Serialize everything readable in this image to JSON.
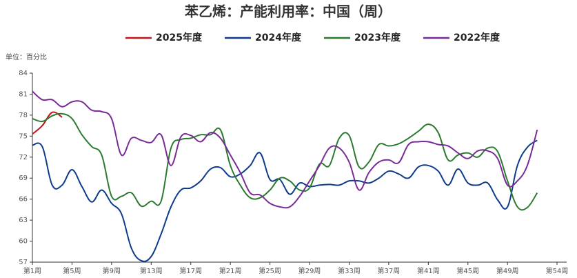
{
  "chart_data": {
    "type": "line",
    "title": "苯乙烯：产能利用率：中国（周）",
    "y_label": "单位：百分比",
    "categories": [
      "第1周",
      null,
      null,
      null,
      "第5周",
      null,
      null,
      null,
      "第9周",
      null,
      null,
      null,
      "第13周",
      null,
      null,
      null,
      "第17周",
      null,
      null,
      null,
      "第21周",
      null,
      null,
      null,
      "第25周",
      null,
      null,
      null,
      "第29周",
      null,
      null,
      null,
      "第33周",
      null,
      null,
      null,
      "第37周",
      null,
      null,
      null,
      "第41周",
      null,
      null,
      null,
      "第45周",
      null,
      null,
      null,
      "第49周",
      null,
      null,
      null,
      null,
      "第54周"
    ],
    "series": [
      {
        "name": "2025年度",
        "color": "#c0141c",
        "values": [
          75.3,
          76.5,
          78.4,
          77.7,
          null,
          null,
          null,
          null,
          null,
          null,
          null,
          null,
          null,
          null,
          null,
          null,
          null,
          null,
          null,
          null,
          null,
          null,
          null,
          null,
          null,
          null,
          null,
          null,
          null,
          null,
          null,
          null,
          null,
          null,
          null,
          null,
          null,
          null,
          null,
          null,
          null,
          null,
          null,
          null,
          null,
          null,
          null,
          null,
          null,
          null,
          null,
          null,
          null,
          null
        ]
      },
      {
        "name": "2024年度",
        "color": "#0d3a8a",
        "values": [
          73.7,
          73.5,
          68.0,
          68.0,
          70.2,
          67.8,
          65.6,
          67.3,
          65.4,
          63.9,
          59.0,
          57.2,
          57.8,
          61.0,
          64.9,
          67.3,
          67.6,
          68.6,
          70.3,
          70.5,
          69.2,
          69.6,
          70.8,
          72.6,
          68.8,
          68.8,
          66.7,
          68.3,
          67.8,
          68.0,
          68.1,
          68.0,
          68.6,
          68.6,
          68.3,
          69.0,
          70.0,
          69.6,
          69.0,
          70.6,
          70.8,
          70.0,
          68.0,
          70.3,
          68.3,
          68.0,
          68.3,
          65.9,
          64.9,
          70.8,
          73.4,
          74.4,
          null,
          null
        ]
      },
      {
        "name": "2023年度",
        "color": "#2a7a2e",
        "values": [
          77.5,
          77.1,
          77.9,
          78.2,
          77.5,
          75.2,
          73.5,
          72.3,
          66.4,
          66.4,
          66.9,
          65.0,
          65.7,
          65.7,
          73.3,
          74.5,
          74.7,
          75.2,
          75.2,
          75.9,
          70.8,
          68.0,
          66.2,
          66.2,
          67.3,
          69.0,
          68.6,
          67.3,
          67.6,
          71.0,
          70.8,
          74.7,
          75.1,
          70.6,
          71.3,
          73.8,
          73.6,
          73.9,
          74.7,
          75.7,
          76.7,
          75.5,
          71.6,
          72.3,
          72.6,
          72.0,
          73.3,
          72.8,
          68.6,
          64.9,
          64.8,
          66.9,
          null,
          null
        ]
      },
      {
        "name": "2022年度",
        "color": "#7a2a96",
        "values": [
          81.4,
          80.2,
          80.2,
          79.2,
          79.9,
          79.9,
          78.7,
          78.5,
          77.5,
          72.3,
          74.7,
          74.4,
          74.1,
          75.2,
          70.8,
          74.9,
          75.1,
          74.2,
          75.5,
          74.7,
          72.3,
          69.8,
          66.9,
          66.6,
          65.4,
          64.9,
          64.9,
          66.4,
          68.6,
          70.8,
          73.3,
          73.3,
          71.3,
          67.3,
          69.8,
          71.3,
          71.6,
          71.2,
          73.8,
          74.2,
          74.2,
          73.8,
          73.6,
          72.6,
          71.8,
          72.9,
          72.9,
          71.8,
          68.0,
          68.6,
          70.8,
          75.9,
          null,
          null
        ]
      }
    ],
    "ylim": [
      57,
      84
    ],
    "yticks": [
      57,
      60,
      63,
      66,
      69,
      72,
      75,
      78,
      81,
      84
    ],
    "grid": false,
    "legend": "top"
  }
}
